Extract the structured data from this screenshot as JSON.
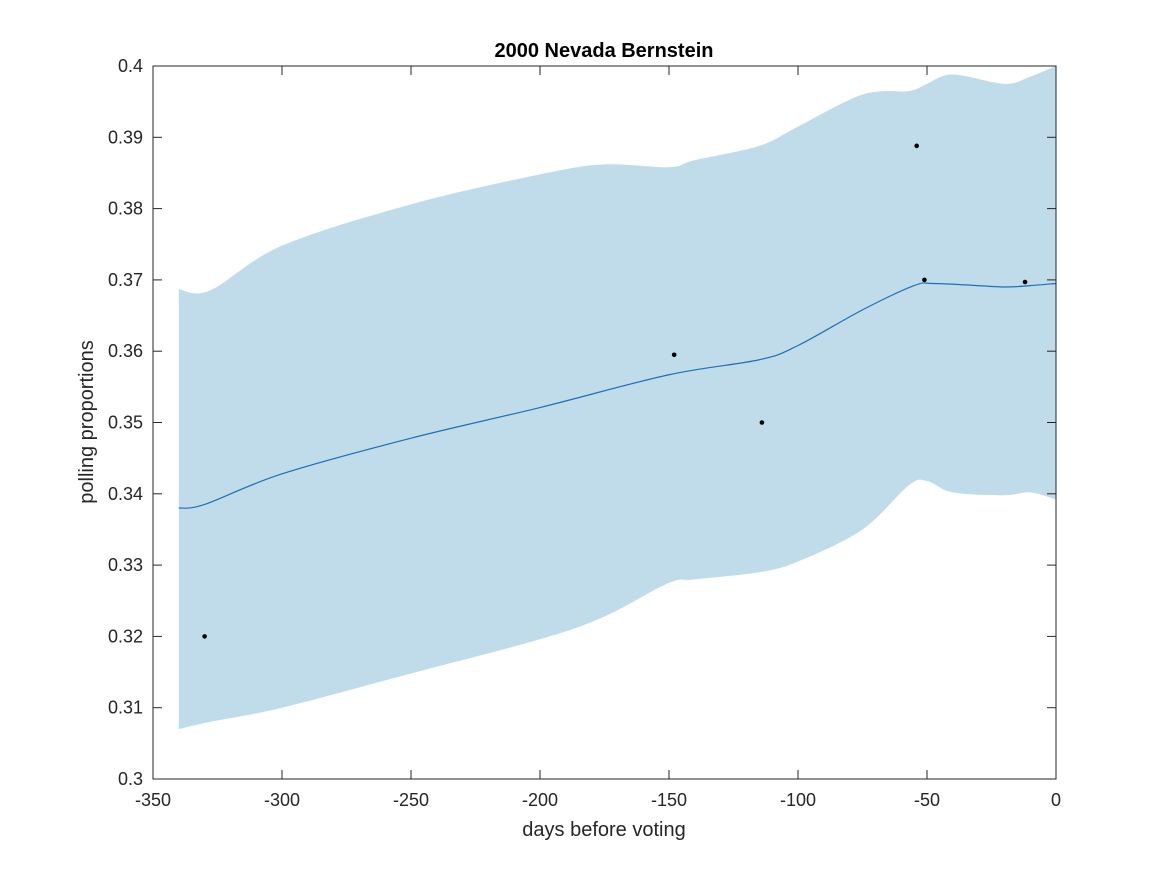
{
  "chart_data": {
    "type": "line",
    "title": "2000 Nevada Bernstein",
    "xlabel": "days before voting",
    "ylabel": "polling proportions",
    "xlim": [
      -350,
      0
    ],
    "ylim": [
      0.3,
      0.4
    ],
    "x_ticks": [
      -350,
      -300,
      -250,
      -200,
      -150,
      -100,
      -50,
      0
    ],
    "x_tick_labels": [
      "-350",
      "-300",
      "-250",
      "-200",
      "-150",
      "-100",
      "-50",
      "0"
    ],
    "y_ticks": [
      0.3,
      0.31,
      0.32,
      0.33,
      0.34,
      0.35,
      0.36,
      0.37,
      0.38,
      0.39,
      0.4
    ],
    "y_tick_labels": [
      "0.3",
      "0.31",
      "0.32",
      "0.33",
      "0.34",
      "0.35",
      "0.36",
      "0.37",
      "0.38",
      "0.39",
      "0.4"
    ],
    "grid": false,
    "band": {
      "x": [
        -340,
        -328,
        -300,
        -250,
        -200,
        -175,
        -150,
        -140,
        -115,
        -100,
        -75,
        -57,
        -50,
        -40,
        -20,
        -10,
        0
      ],
      "upper": [
        0.3687,
        0.3685,
        0.3748,
        0.3806,
        0.3848,
        0.3862,
        0.3858,
        0.3868,
        0.3888,
        0.3915,
        0.396,
        0.3965,
        0.3975,
        0.3988,
        0.3975,
        0.3985,
        0.4
      ],
      "lower": [
        0.307,
        0.308,
        0.31,
        0.3148,
        0.3196,
        0.3228,
        0.3275,
        0.328,
        0.329,
        0.3305,
        0.335,
        0.3412,
        0.3418,
        0.3402,
        0.3398,
        0.3402,
        0.3392
      ]
    },
    "series": [
      {
        "x": [
          -340,
          -330,
          -300,
          -250,
          -200,
          -150,
          -115,
          -100,
          -75,
          -55,
          -48,
          -35,
          -20,
          -10,
          0
        ],
        "values": [
          0.338,
          0.3385,
          0.3428,
          0.3478,
          0.3521,
          0.3567,
          0.3588,
          0.3608,
          0.3658,
          0.3692,
          0.3695,
          0.3693,
          0.369,
          0.3692,
          0.3695
        ]
      }
    ],
    "points": {
      "x": [
        -330,
        -148,
        -114,
        -54,
        -51,
        -12
      ],
      "y": [
        0.32,
        0.3595,
        0.35,
        0.3888,
        0.37,
        0.3697
      ]
    },
    "colors": {
      "band": "#c0dcea",
      "line": "#1f6fb5",
      "points": "#000000",
      "axes": "#262626"
    }
  }
}
